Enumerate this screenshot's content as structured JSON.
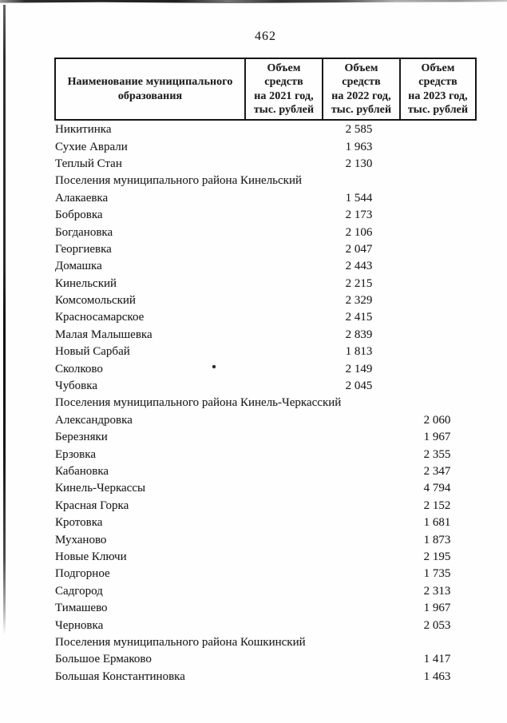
{
  "page": {
    "number": "462"
  },
  "table": {
    "header": {
      "name_col": "Наименование муниципального\nобразования",
      "col_2021": "Объем\nсредств\nна 2021 год,\nтыс. рублей",
      "col_2022": "Объем\nсредств\nна 2022 год,\nтыс. рублей",
      "col_2023": "Объем\nсредств\nна 2023 год,\nтыс. рублей"
    },
    "rows": [
      {
        "name": "Никитинка",
        "y2021": "",
        "y2022": "2 585",
        "y2023": ""
      },
      {
        "name": "Сухие Аврали",
        "y2021": "",
        "y2022": "1 963",
        "y2023": ""
      },
      {
        "name": "Теплый Стан",
        "y2021": "",
        "y2022": "2 130",
        "y2023": ""
      },
      {
        "name": "Поселения муниципального района Кинельский",
        "section": true
      },
      {
        "name": "Алакаевка",
        "y2021": "",
        "y2022": "1 544",
        "y2023": ""
      },
      {
        "name": "Бобровка",
        "y2021": "",
        "y2022": "2 173",
        "y2023": ""
      },
      {
        "name": "Богдановка",
        "y2021": "",
        "y2022": "2 106",
        "y2023": ""
      },
      {
        "name": "Георгиевка",
        "y2021": "",
        "y2022": "2 047",
        "y2023": ""
      },
      {
        "name": "Домашка",
        "y2021": "",
        "y2022": "2 443",
        "y2023": ""
      },
      {
        "name": "Кинельский",
        "y2021": "",
        "y2022": "2 215",
        "y2023": ""
      },
      {
        "name": "Комсомольский",
        "y2021": "",
        "y2022": "2 329",
        "y2023": ""
      },
      {
        "name": "Красносамарское",
        "y2021": "",
        "y2022": "2 415",
        "y2023": ""
      },
      {
        "name": "Малая Малышевка",
        "y2021": "",
        "y2022": "2 839",
        "y2023": ""
      },
      {
        "name": "Новый Сарбай",
        "y2021": "",
        "y2022": "1 813",
        "y2023": ""
      },
      {
        "name": "Сколково",
        "y2021": "",
        "y2022": "2 149",
        "y2023": ""
      },
      {
        "name": "Чубовка",
        "y2021": "",
        "y2022": "2 045",
        "y2023": ""
      },
      {
        "name": "Поселения муниципального района Кинель-Черкасский",
        "section": true
      },
      {
        "name": "Александровка",
        "y2021": "",
        "y2022": "",
        "y2023": "2 060"
      },
      {
        "name": "Березняки",
        "y2021": "",
        "y2022": "",
        "y2023": "1 967"
      },
      {
        "name": "Ерзовка",
        "y2021": "",
        "y2022": "",
        "y2023": "2 355"
      },
      {
        "name": "Кабановка",
        "y2021": "",
        "y2022": "",
        "y2023": "2 347"
      },
      {
        "name": "Кинель-Черкассы",
        "y2021": "",
        "y2022": "",
        "y2023": "4 794"
      },
      {
        "name": "Красная Горка",
        "y2021": "",
        "y2022": "",
        "y2023": "2 152"
      },
      {
        "name": "Кротовка",
        "y2021": "",
        "y2022": "",
        "y2023": "1 681"
      },
      {
        "name": "Муханово",
        "y2021": "",
        "y2022": "",
        "y2023": "1 873"
      },
      {
        "name": "Новые Ключи",
        "y2021": "",
        "y2022": "",
        "y2023": "2 195"
      },
      {
        "name": "Подгорное",
        "y2021": "",
        "y2022": "",
        "y2023": "1 735"
      },
      {
        "name": "Садгород",
        "y2021": "",
        "y2022": "",
        "y2023": "2 313"
      },
      {
        "name": "Тимашево",
        "y2021": "",
        "y2022": "",
        "y2023": "1 967"
      },
      {
        "name": "Черновка",
        "y2021": "",
        "y2022": "",
        "y2023": "2 053"
      },
      {
        "name": "Поселения муниципального района Кошкинский",
        "section": true
      },
      {
        "name": "Большое Ермаково",
        "y2021": "",
        "y2022": "",
        "y2023": "1 417"
      },
      {
        "name": "Большая Константиновка",
        "y2021": "",
        "y2022": "",
        "y2023": "1 463"
      }
    ]
  }
}
